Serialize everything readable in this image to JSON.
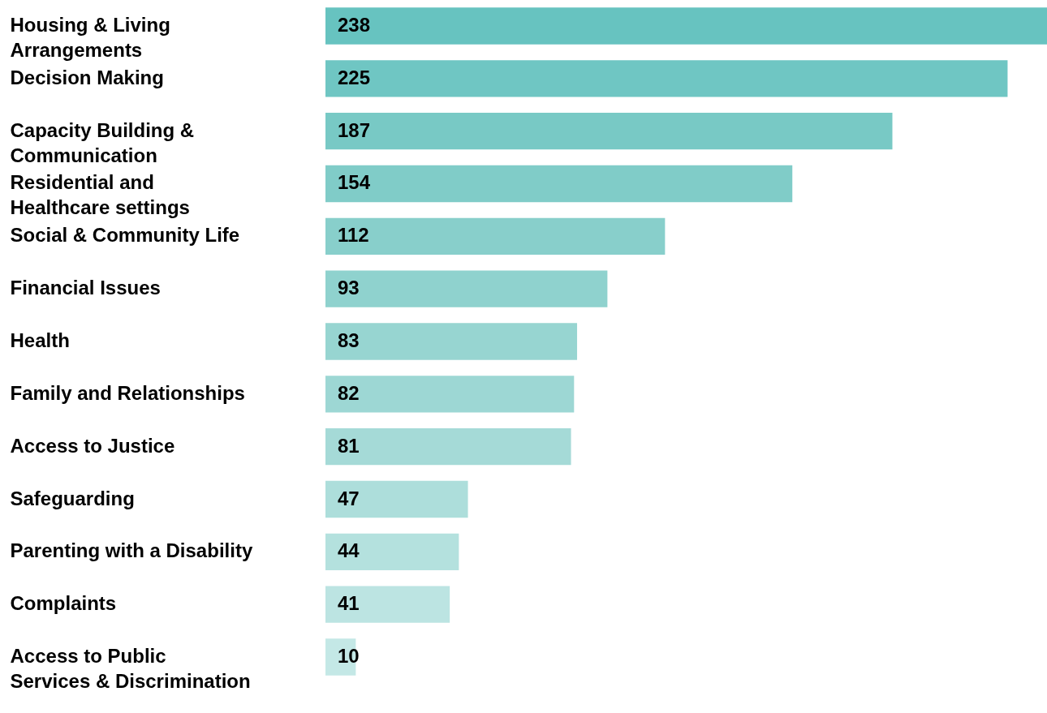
{
  "chart_data": {
    "type": "bar",
    "orientation": "horizontal",
    "categories": [
      "Housing & Living Arrangements",
      "Decision Making",
      "Capacity Building & Communication",
      "Residential and Healthcare settings",
      "Social & Community Life",
      "Financial Issues",
      "Health",
      "Family and Relationships",
      "Access to Justice",
      "Safeguarding",
      "Parenting with a Disability",
      "Complaints",
      "Access to Public Services & Discrimination"
    ],
    "values": [
      238,
      225,
      187,
      154,
      112,
      93,
      83,
      82,
      81,
      47,
      44,
      41,
      10
    ],
    "colors": [
      "#67c3c0",
      "#6fc6c3",
      "#78c9c5",
      "#80ccc8",
      "#88cfcb",
      "#8fd2ce",
      "#97d5d1",
      "#9dd7d4",
      "#a5dad7",
      "#addedb",
      "#b4e1de",
      "#bce4e2",
      "#c4e8e6"
    ],
    "data_labels": true
  }
}
